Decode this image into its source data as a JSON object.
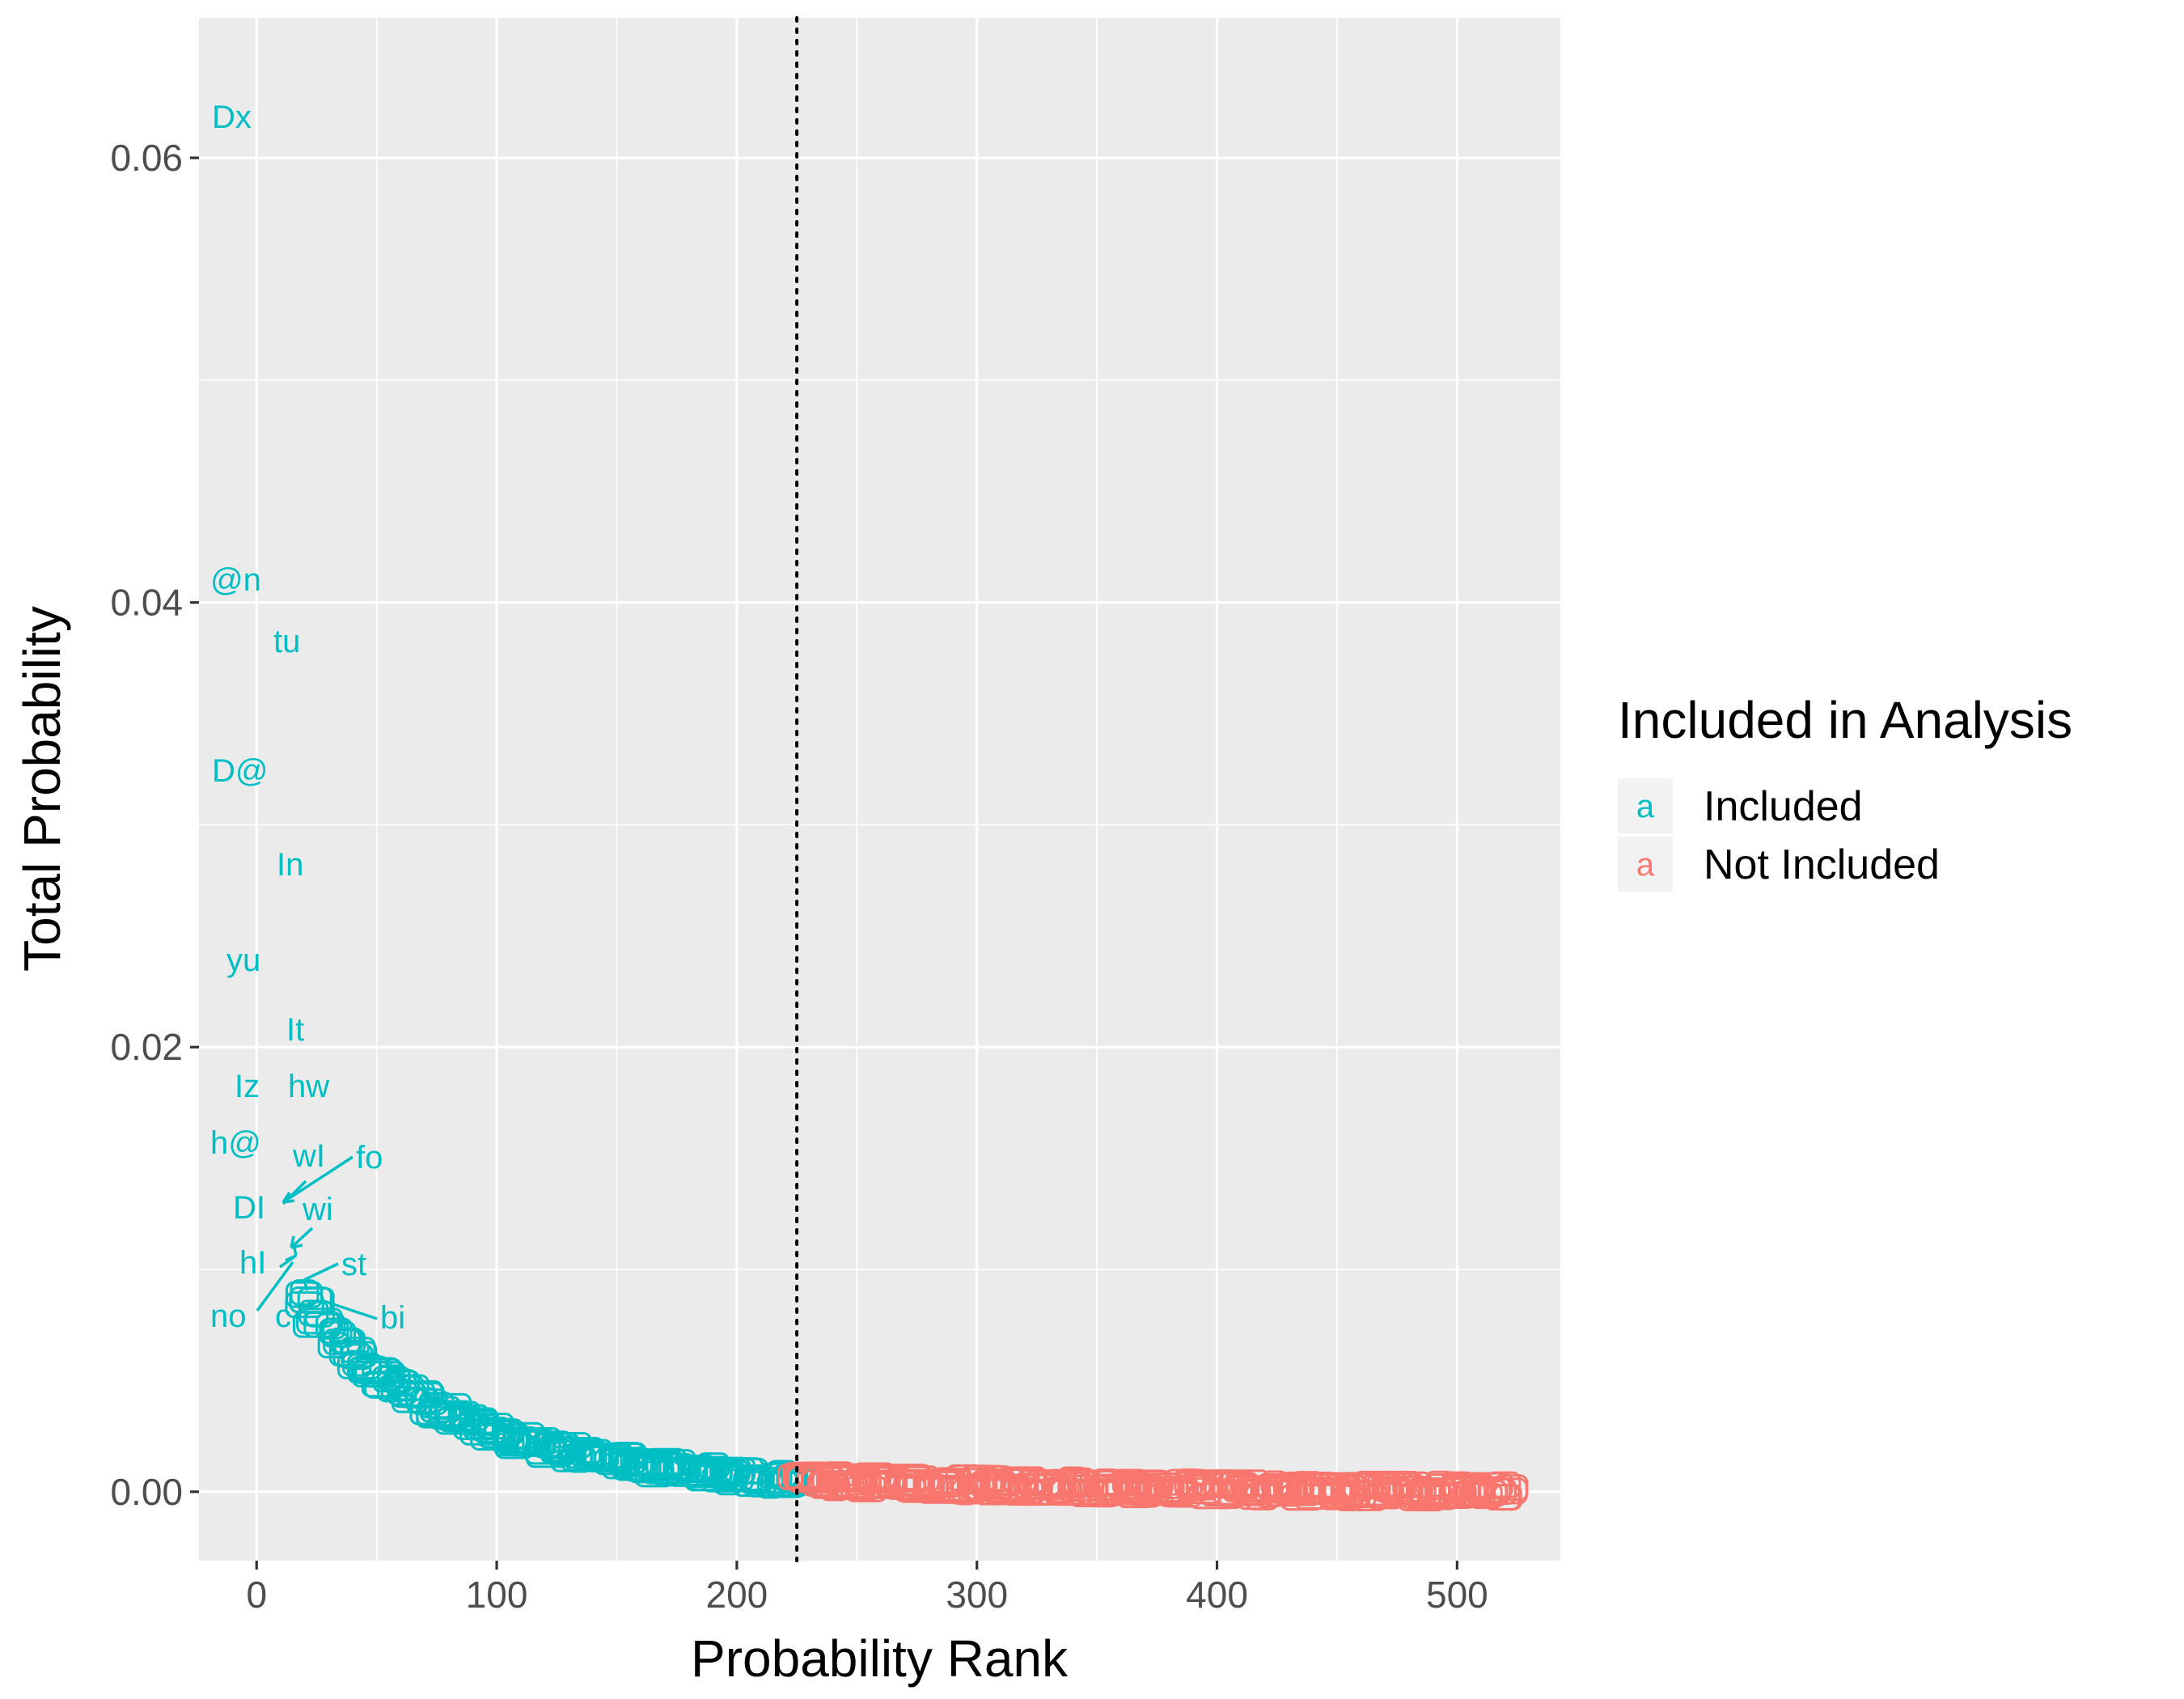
{
  "chart_data": {
    "type": "scatter",
    "xlabel": "Probability Rank",
    "ylabel": "Total Probability",
    "xlim": [
      -24,
      543
    ],
    "ylim": [
      -0.0031,
      0.0663
    ],
    "x_ticks": [
      0,
      100,
      200,
      300,
      400,
      500
    ],
    "x_tick_labels": [
      "0",
      "100",
      "200",
      "300",
      "400",
      "500"
    ],
    "y_ticks": [
      0.0,
      0.02,
      0.04,
      0.06
    ],
    "y_tick_labels": [
      "0.00",
      "0.02",
      "0.04",
      "0.06"
    ],
    "cutoff_rank": 225,
    "grid": true,
    "legend": {
      "title": "Included in Analysis",
      "position": "right",
      "key_glyph": "a",
      "entries": [
        {
          "label": "Included",
          "color": "#00BFC4"
        },
        {
          "label": "Not Included",
          "color": "#F8766D"
        }
      ]
    },
    "colors": {
      "Included": "#00BFC4",
      "Not Included": "#F8766D",
      "panel_bg": "#EBEBEB",
      "grid": "#FFFFFF",
      "cutoff_line": "#000000"
    },
    "labeled_points": [
      {
        "label": "Dx",
        "x": 1,
        "y": 0.0615,
        "group": "Included"
      },
      {
        "label": "@n",
        "x": 2,
        "y": 0.0408,
        "group": "Included"
      },
      {
        "label": "tu",
        "x": 3,
        "y": 0.0381,
        "group": "Included"
      },
      {
        "label": "D@",
        "x": 4,
        "y": 0.0323,
        "group": "Included"
      },
      {
        "label": "In",
        "x": 5,
        "y": 0.028,
        "group": "Included"
      },
      {
        "label": "yu",
        "x": 6,
        "y": 0.0237,
        "group": "Included"
      },
      {
        "label": "It",
        "x": 7,
        "y": 0.0206,
        "group": "Included"
      },
      {
        "label": "Iz",
        "x": 8,
        "y": 0.0181,
        "group": "Included"
      },
      {
        "label": "hw",
        "x": 9,
        "y": 0.0181,
        "group": "Included"
      },
      {
        "label": "h@",
        "x": 10,
        "y": 0.0156,
        "group": "Included"
      },
      {
        "label": "wI",
        "x": 11,
        "y": 0.015,
        "group": "Included"
      },
      {
        "label": "fo",
        "x": 12,
        "y": 0.0149,
        "group": "Included"
      },
      {
        "label": "DI",
        "x": 13,
        "y": 0.0127,
        "group": "Included"
      },
      {
        "label": "wi",
        "x": 14,
        "y": 0.0126,
        "group": "Included"
      },
      {
        "label": "hI",
        "x": 15,
        "y": 0.0102,
        "group": "Included"
      },
      {
        "label": "st",
        "x": 16,
        "y": 0.0101,
        "group": "Included"
      },
      {
        "label": "no",
        "x": 17,
        "y": 0.0078,
        "group": "Included"
      },
      {
        "label": "c",
        "x": 18,
        "y": 0.0077,
        "group": "Included"
      },
      {
        "label": "bi",
        "x": 19,
        "y": 0.0077,
        "group": "Included"
      }
    ],
    "series": [
      {
        "name": "Included",
        "rank_range": [
          20,
          225
        ],
        "y_at": [
          [
            20,
            0.009
          ],
          [
            30,
            0.0073
          ],
          [
            50,
            0.0052
          ],
          [
            75,
            0.0038
          ],
          [
            100,
            0.0026
          ],
          [
            125,
            0.0019
          ],
          [
            150,
            0.0014
          ],
          [
            175,
            0.001
          ],
          [
            200,
            0.0007
          ],
          [
            225,
            0.0005
          ]
        ]
      },
      {
        "name": "Not Included",
        "rank_range": [
          226,
          522
        ],
        "y_at": [
          [
            226,
            0.0005
          ],
          [
            260,
            0.0004
          ],
          [
            300,
            0.0003
          ],
          [
            350,
            0.0002
          ],
          [
            400,
            0.0001
          ],
          [
            450,
            5e-05
          ],
          [
            522,
            0.0
          ]
        ]
      }
    ]
  }
}
